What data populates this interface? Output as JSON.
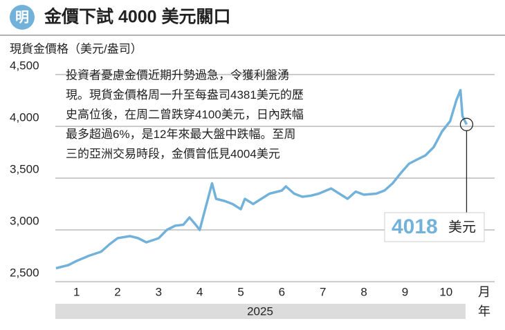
{
  "chart_data": {
    "type": "line",
    "logo": "明",
    "title": "金價下試 4000 美元關口",
    "y_axis_label": "現貨金價格（美元/盎司）",
    "annotation": [
      "投資者憂慮金價近期升勢過急，令獲利盤湧",
      "現。現貨金價格周一升至每盎司4381美元的歷",
      "史高位後，在周二曾跌穿4100美元，日內跌幅",
      "最多超過6%，是12年來最大盤中跌幅。至周",
      "三的亞洲交易時段，金價曾低見4004美元"
    ],
    "callout": {
      "value": "4018",
      "unit": "美元"
    },
    "x_unit": "月",
    "year_label": "2025",
    "year_unit": "年",
    "xlim": [
      0.5,
      11.2
    ],
    "xticks": [
      1,
      2,
      3,
      4,
      5,
      6,
      7,
      8,
      9,
      10
    ],
    "ylim": [
      2500,
      4500
    ],
    "yticks": [
      {
        "value": 2500,
        "label": "2,500"
      },
      {
        "value": 3000,
        "label": "3,000"
      },
      {
        "value": 3500,
        "label": "3,500"
      },
      {
        "value": 4000,
        "label": "4,000"
      },
      {
        "value": 4500,
        "label": "4,500"
      }
    ],
    "grid": true,
    "color": "#72b2da",
    "x": [
      0.5,
      0.8,
      1.0,
      1.3,
      1.6,
      1.8,
      2.0,
      2.3,
      2.5,
      2.7,
      3.0,
      3.2,
      3.4,
      3.6,
      3.75,
      3.9,
      4.0,
      4.1,
      4.2,
      4.3,
      4.4,
      4.6,
      4.8,
      5.0,
      5.1,
      5.3,
      5.5,
      5.7,
      6.0,
      6.1,
      6.3,
      6.5,
      6.7,
      6.9,
      7.2,
      7.4,
      7.6,
      7.8,
      8.0,
      8.3,
      8.5,
      8.7,
      8.9,
      9.1,
      9.3,
      9.5,
      9.7,
      9.9,
      10.1,
      10.25,
      10.35,
      10.4,
      10.5
    ],
    "values": [
      2630,
      2660,
      2700,
      2750,
      2790,
      2860,
      2920,
      2940,
      2920,
      2880,
      2920,
      3000,
      3040,
      3050,
      3120,
      3050,
      3000,
      3150,
      3300,
      3450,
      3300,
      3280,
      3250,
      3200,
      3300,
      3250,
      3300,
      3350,
      3380,
      3420,
      3350,
      3320,
      3330,
      3350,
      3400,
      3350,
      3300,
      3370,
      3340,
      3350,
      3380,
      3450,
      3550,
      3640,
      3680,
      3720,
      3800,
      3950,
      4050,
      4250,
      4350,
      4100,
      4018
    ]
  }
}
